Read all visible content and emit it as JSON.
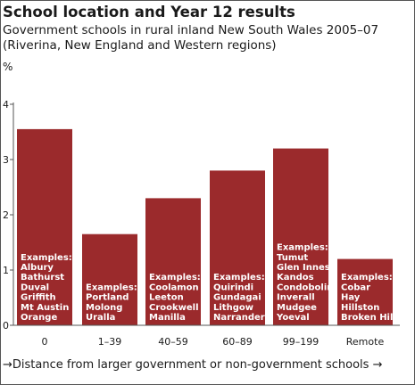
{
  "chart_data": {
    "type": "bar",
    "title": "School location and Year 12 results",
    "subtitle_lines": [
      "Government schools in rural inland New South Wales 2005–07",
      "(Riverina, New England and Western regions)"
    ],
    "ylabel": "%",
    "xlabel": "→Distance from larger government or non-government schools →",
    "ylim": [
      0,
      4
    ],
    "yticks": [
      "0",
      "1",
      "2",
      "3",
      "4"
    ],
    "grid": false,
    "categories": [
      "0",
      "1–39",
      "40–59",
      "60–89",
      "99–199",
      "Remote"
    ],
    "values": [
      3.55,
      1.65,
      2.3,
      2.8,
      3.2,
      1.2
    ],
    "bar_color": "#9b2a2c",
    "annotations": [
      [
        "Examples:",
        "Albury",
        "Bathurst",
        "Duval",
        "Griffith",
        "Mt Austin",
        "Orange"
      ],
      [
        "Examples:",
        "Portland",
        "Molong",
        "Uralla"
      ],
      [
        "Examples:",
        "Coolamon",
        "Leeton",
        "Crookwell",
        "Manilla"
      ],
      [
        "Examples:",
        "Quirindi",
        "Gundagai",
        "Lithgow",
        "Narrandera"
      ],
      [
        "Examples:",
        "Tumut",
        "Glen Innes",
        "Kandos",
        "Condobolin",
        "Inverall",
        "Mudgee",
        "Yoeval"
      ],
      [
        "Examples:",
        "Cobar",
        "Hay",
        "Hillston",
        "Broken Hill"
      ]
    ]
  }
}
